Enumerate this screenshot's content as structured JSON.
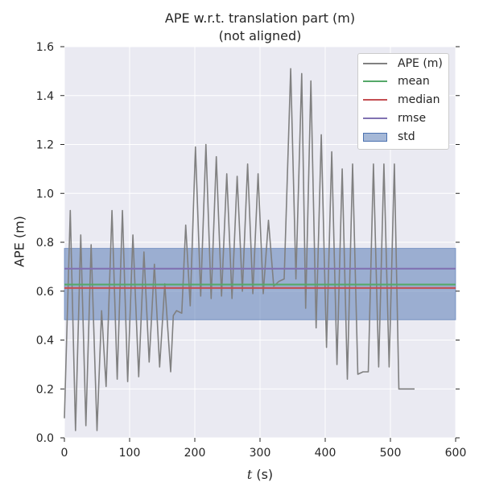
{
  "chart_data": {
    "type": "line",
    "title": "APE w.r.t. translation part (m)",
    "subtitle": "(not aligned)",
    "xlabel_var": "t",
    "xlabel_unit": "(s)",
    "ylabel": "APE (m)",
    "xlim": [
      0,
      600
    ],
    "ylim": [
      0,
      1.6
    ],
    "xticks": [
      0,
      100,
      200,
      300,
      400,
      500,
      600
    ],
    "yticks": [
      "0.0",
      "0.2",
      "0.4",
      "0.6",
      "0.8",
      "1.0",
      "1.2",
      "1.4",
      "1.6"
    ],
    "grid": true,
    "legend_position": "top-right",
    "series": [
      {
        "name": "APE (m)",
        "color": "#808080",
        "x": [
          0,
          9,
          17,
          25,
          33,
          41,
          50,
          57,
          64,
          73,
          81,
          89,
          97,
          105,
          114,
          122,
          130,
          138,
          146,
          154,
          163,
          167,
          172,
          180,
          186,
          193,
          201,
          209,
          217,
          225,
          233,
          241,
          249,
          257,
          265,
          273,
          281,
          289,
          297,
          305,
          313,
          321,
          329,
          337,
          347,
          355,
          364,
          370,
          378,
          386,
          394,
          402,
          410,
          418,
          426,
          434,
          442,
          450,
          458,
          466,
          474,
          482,
          490,
          498,
          506,
          513,
          537
        ],
        "y": [
          0.08,
          0.93,
          0.03,
          0.83,
          0.05,
          0.79,
          0.03,
          0.52,
          0.21,
          0.93,
          0.24,
          0.93,
          0.23,
          0.83,
          0.25,
          0.76,
          0.31,
          0.71,
          0.29,
          0.63,
          0.27,
          0.5,
          0.52,
          0.51,
          0.87,
          0.54,
          1.19,
          0.58,
          1.2,
          0.57,
          1.15,
          0.58,
          1.08,
          0.57,
          1.07,
          0.6,
          1.12,
          0.59,
          1.08,
          0.59,
          0.89,
          0.62,
          0.64,
          0.65,
          1.51,
          0.65,
          1.49,
          0.53,
          1.46,
          0.45,
          1.24,
          0.37,
          1.17,
          0.3,
          1.1,
          0.24,
          1.12,
          0.26,
          0.27,
          0.27,
          1.12,
          0.29,
          1.12,
          0.29,
          1.12,
          0.2,
          0.2
        ]
      },
      {
        "name": "mean",
        "color": "#55a868",
        "value": 0.627
      },
      {
        "name": "median",
        "color": "#c44e52",
        "value": 0.613
      },
      {
        "name": "rmse",
        "color": "#8172b2",
        "value": 0.692
      },
      {
        "name": "std",
        "color": "#4c72b0",
        "band": [
          0.483,
          0.775
        ]
      }
    ]
  },
  "colors": {
    "plot_background": "#eaeaf2",
    "grid": "#ffffff",
    "band_fill": "#4c72b0"
  }
}
